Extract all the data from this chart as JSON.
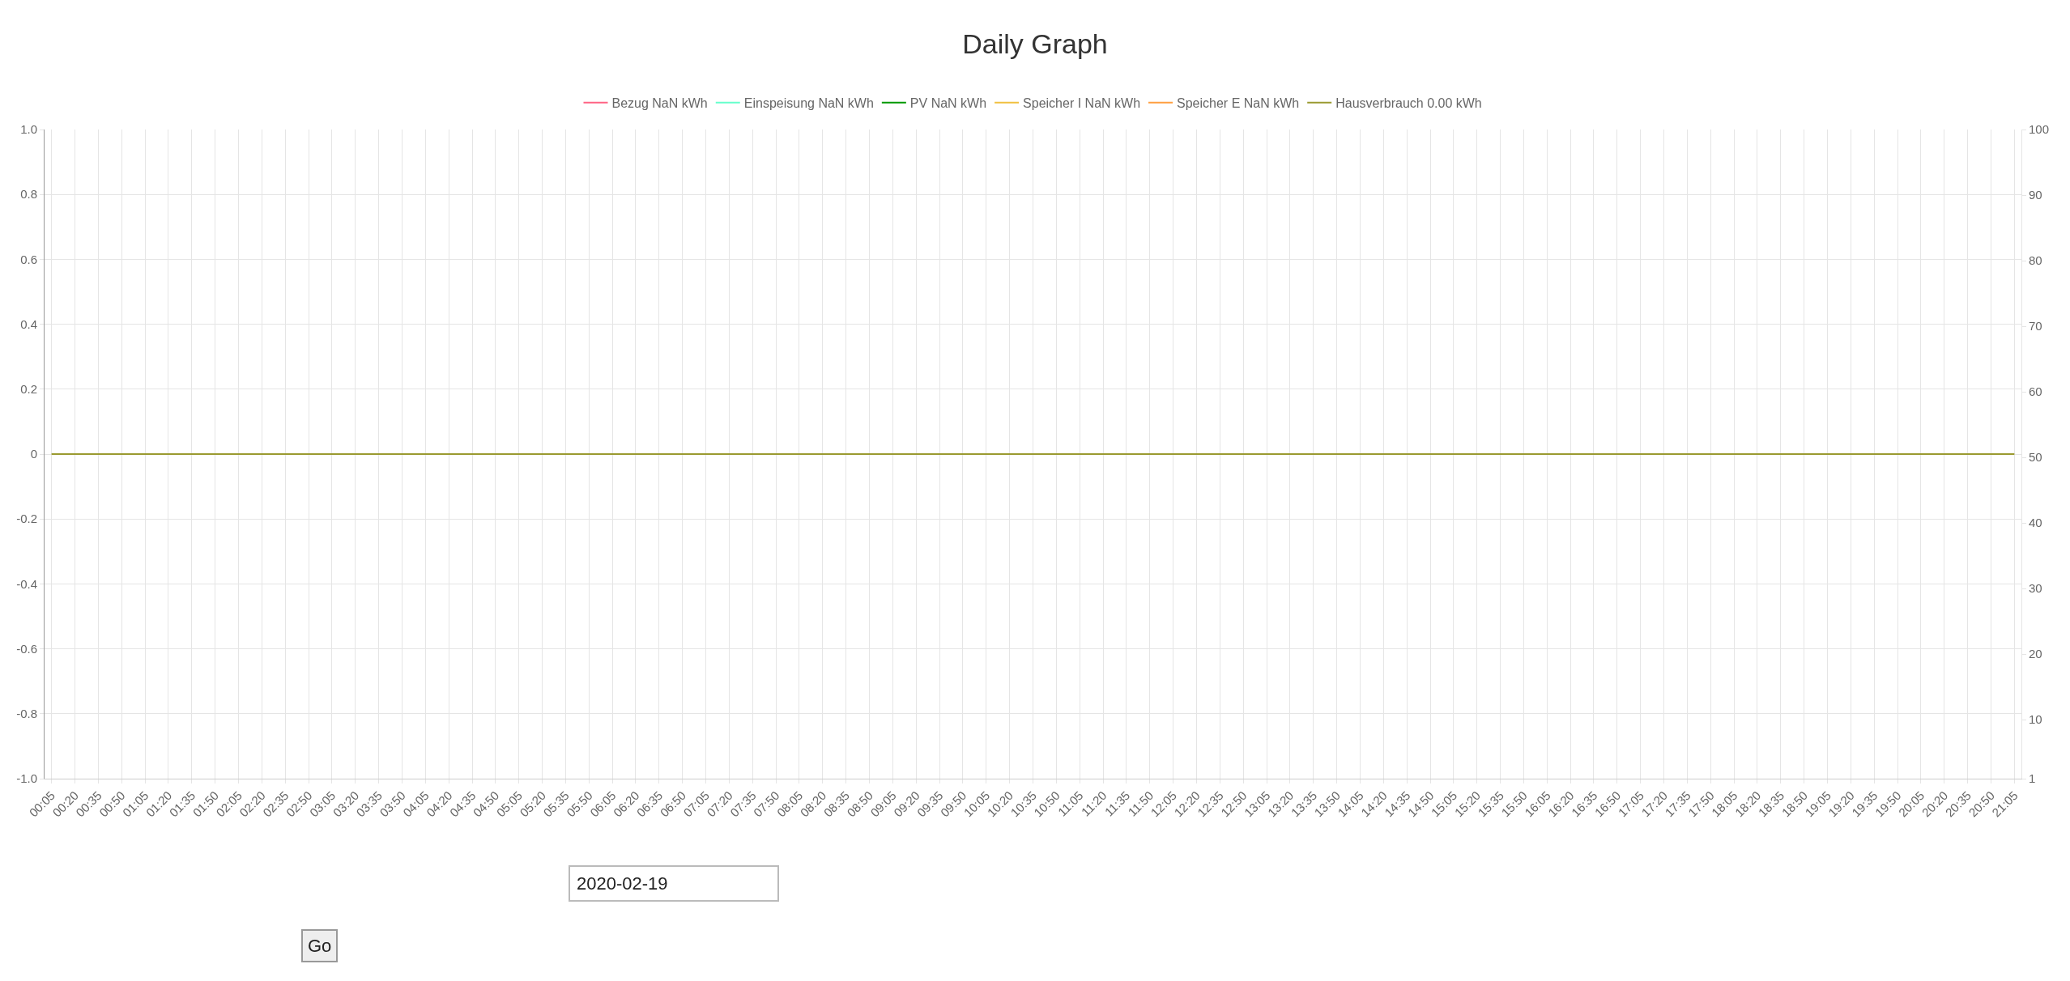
{
  "chart_data": {
    "type": "line",
    "title": "Daily Graph",
    "categories": [
      "00:05",
      "00:20",
      "00:35",
      "00:50",
      "01:05",
      "01:20",
      "01:35",
      "01:50",
      "02:05",
      "02:20",
      "02:35",
      "02:50",
      "03:05",
      "03:20",
      "03:35",
      "03:50",
      "04:05",
      "04:20",
      "04:35",
      "04:50",
      "05:05",
      "05:20",
      "05:35",
      "05:50",
      "06:05",
      "06:20",
      "06:35",
      "06:50",
      "07:05",
      "07:20",
      "07:35",
      "07:50",
      "08:05",
      "08:20",
      "08:35",
      "08:50",
      "09:05",
      "09:20",
      "09:35",
      "09:50",
      "10:05",
      "10:20",
      "10:35",
      "10:50",
      "11:05",
      "11:20",
      "11:35",
      "11:50",
      "12:05",
      "12:20",
      "12:35",
      "12:50",
      "13:05",
      "13:20",
      "13:35",
      "13:50",
      "14:05",
      "14:20",
      "14:35",
      "14:50",
      "15:05",
      "15:20",
      "15:35",
      "15:50",
      "16:05",
      "16:20",
      "16:35",
      "16:50",
      "17:05",
      "17:20",
      "17:35",
      "17:50",
      "18:05",
      "18:20",
      "18:35",
      "18:50",
      "19:05",
      "19:20",
      "19:35",
      "19:50",
      "20:05",
      "20:20",
      "20:35",
      "20:50",
      "21:05"
    ],
    "series": [
      {
        "name": "Bezug NaN kWh",
        "color": "#ff6384",
        "values": [
          null,
          null,
          null,
          null,
          null,
          null,
          null,
          null,
          null,
          null,
          null,
          null,
          null,
          null,
          null,
          null,
          null,
          null,
          null,
          null,
          null,
          null,
          null,
          null,
          null,
          null,
          null,
          null,
          null,
          null,
          null,
          null,
          null,
          null,
          null,
          null,
          null,
          null,
          null,
          null,
          null,
          null,
          null,
          null,
          null,
          null,
          null,
          null,
          null,
          null,
          null,
          null,
          null,
          null,
          null,
          null,
          null,
          null,
          null,
          null,
          null,
          null,
          null,
          null,
          null,
          null,
          null,
          null,
          null,
          null,
          null,
          null,
          null,
          null,
          null,
          null,
          null,
          null,
          null,
          null,
          null,
          null,
          null,
          null,
          null
        ]
      },
      {
        "name": "Einspeisung NaN kWh",
        "color": "#66ffcc",
        "values": [
          null,
          null,
          null,
          null,
          null,
          null,
          null,
          null,
          null,
          null,
          null,
          null,
          null,
          null,
          null,
          null,
          null,
          null,
          null,
          null,
          null,
          null,
          null,
          null,
          null,
          null,
          null,
          null,
          null,
          null,
          null,
          null,
          null,
          null,
          null,
          null,
          null,
          null,
          null,
          null,
          null,
          null,
          null,
          null,
          null,
          null,
          null,
          null,
          null,
          null,
          null,
          null,
          null,
          null,
          null,
          null,
          null,
          null,
          null,
          null,
          null,
          null,
          null,
          null,
          null,
          null,
          null,
          null,
          null,
          null,
          null,
          null,
          null,
          null,
          null,
          null,
          null,
          null,
          null,
          null,
          null,
          null,
          null,
          null,
          null
        ]
      },
      {
        "name": "PV NaN kWh",
        "color": "#009900",
        "values": [
          null,
          null,
          null,
          null,
          null,
          null,
          null,
          null,
          null,
          null,
          null,
          null,
          null,
          null,
          null,
          null,
          null,
          null,
          null,
          null,
          null,
          null,
          null,
          null,
          null,
          null,
          null,
          null,
          null,
          null,
          null,
          null,
          null,
          null,
          null,
          null,
          null,
          null,
          null,
          null,
          null,
          null,
          null,
          null,
          null,
          null,
          null,
          null,
          null,
          null,
          null,
          null,
          null,
          null,
          null,
          null,
          null,
          null,
          null,
          null,
          null,
          null,
          null,
          null,
          null,
          null,
          null,
          null,
          null,
          null,
          null,
          null,
          null,
          null,
          null,
          null,
          null,
          null,
          null,
          null,
          null,
          null,
          null,
          null,
          null
        ]
      },
      {
        "name": "Speicher I NaN kWh",
        "color": "#f0c040",
        "values": [
          null,
          null,
          null,
          null,
          null,
          null,
          null,
          null,
          null,
          null,
          null,
          null,
          null,
          null,
          null,
          null,
          null,
          null,
          null,
          null,
          null,
          null,
          null,
          null,
          null,
          null,
          null,
          null,
          null,
          null,
          null,
          null,
          null,
          null,
          null,
          null,
          null,
          null,
          null,
          null,
          null,
          null,
          null,
          null,
          null,
          null,
          null,
          null,
          null,
          null,
          null,
          null,
          null,
          null,
          null,
          null,
          null,
          null,
          null,
          null,
          null,
          null,
          null,
          null,
          null,
          null,
          null,
          null,
          null,
          null,
          null,
          null,
          null,
          null,
          null,
          null,
          null,
          null,
          null,
          null,
          null,
          null,
          null,
          null,
          null
        ]
      },
      {
        "name": "Speicher E NaN kWh",
        "color": "#ff9f40",
        "values": [
          null,
          null,
          null,
          null,
          null,
          null,
          null,
          null,
          null,
          null,
          null,
          null,
          null,
          null,
          null,
          null,
          null,
          null,
          null,
          null,
          null,
          null,
          null,
          null,
          null,
          null,
          null,
          null,
          null,
          null,
          null,
          null,
          null,
          null,
          null,
          null,
          null,
          null,
          null,
          null,
          null,
          null,
          null,
          null,
          null,
          null,
          null,
          null,
          null,
          null,
          null,
          null,
          null,
          null,
          null,
          null,
          null,
          null,
          null,
          null,
          null,
          null,
          null,
          null,
          null,
          null,
          null,
          null,
          null,
          null,
          null,
          null,
          null,
          null,
          null,
          null,
          null,
          null,
          null,
          null,
          null,
          null,
          null,
          null,
          null
        ]
      },
      {
        "name": "Hausverbrauch 0.00 kWh",
        "color": "#9a9a30",
        "values": [
          0,
          0,
          0,
          0,
          0,
          0,
          0,
          0,
          0,
          0,
          0,
          0,
          0,
          0,
          0,
          0,
          0,
          0,
          0,
          0,
          0,
          0,
          0,
          0,
          0,
          0,
          0,
          0,
          0,
          0,
          0,
          0,
          0,
          0,
          0,
          0,
          0,
          0,
          0,
          0,
          0,
          0,
          0,
          0,
          0,
          0,
          0,
          0,
          0,
          0,
          0,
          0,
          0,
          0,
          0,
          0,
          0,
          0,
          0,
          0,
          0,
          0,
          0,
          0,
          0,
          0,
          0,
          0,
          0,
          0,
          0,
          0,
          0,
          0,
          0,
          0,
          0,
          0,
          0,
          0,
          0,
          0,
          0,
          0,
          0
        ]
      }
    ],
    "ylim": [
      -1.0,
      1.0
    ],
    "yticks": [
      {
        "value": -1,
        "label": "-1.0"
      },
      {
        "value": -0.8,
        "label": "-0.8"
      },
      {
        "value": -0.6,
        "label": "-0.6"
      },
      {
        "value": -0.4,
        "label": "-0.4"
      },
      {
        "value": -0.2,
        "label": "-0.2"
      },
      0,
      0.2,
      0.4,
      0.6,
      0.8,
      {
        "value": 1,
        "label": "1.0"
      }
    ],
    "y2lim": [
      1,
      100
    ],
    "y2ticks": [
      1,
      10,
      20,
      30,
      40,
      50,
      60,
      70,
      80,
      90,
      100
    ],
    "grid": true,
    "legend": "top",
    "marker": "none",
    "line_style": "solid",
    "annotations": [
      "2020-02-19",
      "Go"
    ]
  }
}
